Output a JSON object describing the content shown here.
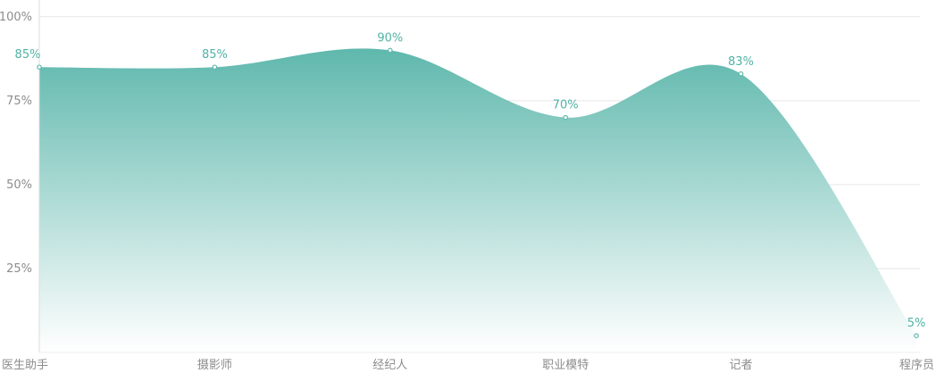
{
  "chart_data": {
    "type": "area",
    "categories": [
      "医生助手",
      "摄影师",
      "经纪人",
      "职业模特",
      "记者",
      "程序员"
    ],
    "series": [
      {
        "values": [
          85,
          85,
          90,
          70,
          83,
          5
        ],
        "data_labels": [
          "85%",
          "85%",
          "90%",
          "70%",
          "83%",
          "5%"
        ],
        "color": "#5fb8ad"
      }
    ],
    "yticks": [
      {
        "value": 25,
        "label": "25%"
      },
      {
        "value": 50,
        "label": "50%"
      },
      {
        "value": 75,
        "label": "75%"
      },
      {
        "value": 100,
        "label": "100%"
      }
    ],
    "ylim": [
      0,
      105
    ],
    "title": "",
    "xlabel": "",
    "ylabel": "",
    "grid": true,
    "legend": "none"
  },
  "colors": {
    "area_top": "#5fb8ad",
    "area_bottom": "#ffffff",
    "label": "#4fb3a6",
    "grid": "#e6e6e6",
    "axis_text": "#8c8c8c"
  }
}
